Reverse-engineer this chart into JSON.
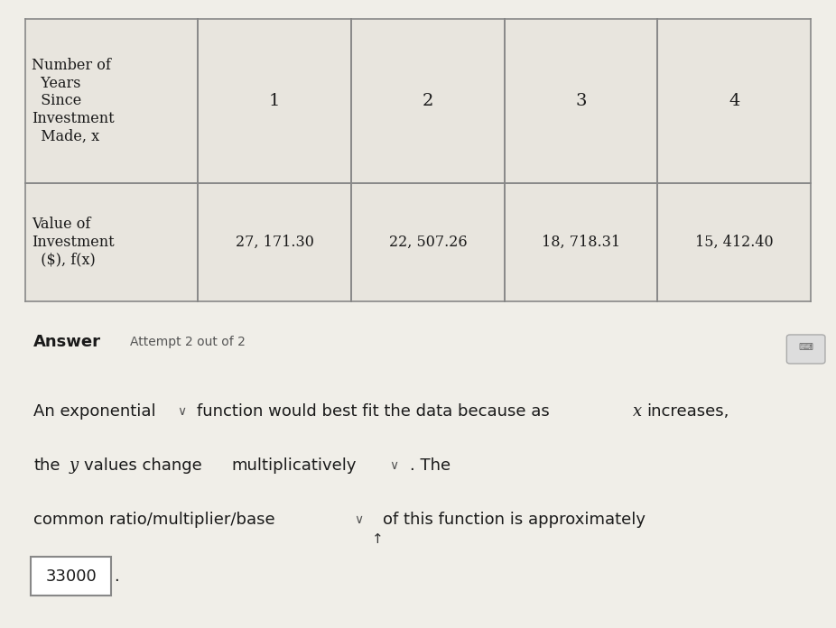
{
  "background_color": "#f0eee8",
  "table_bg": "#e8e5de",
  "x_values": [
    "1",
    "2",
    "3",
    "4"
  ],
  "y_values": [
    "27, 171.30",
    "22, 507.26",
    "18, 718.31",
    "15, 412.40"
  ],
  "answer_label": "Answer",
  "attempt_text": "Attempt 2 out of 2",
  "answer_box_value": "33000",
  "text_color": "#1a1a1a",
  "dropdown_color": "#555555",
  "answer_box_border": "#888888",
  "line_color": "#888888"
}
